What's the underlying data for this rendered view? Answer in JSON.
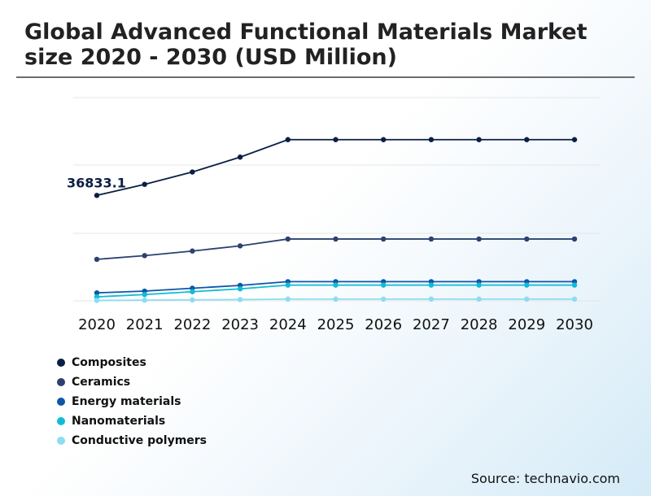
{
  "header": {
    "title": "Global Advanced Functional Materials Market size 2020 - 2030 (USD Million)"
  },
  "source": "Source: technavio.com",
  "chart_data": {
    "type": "line",
    "title": "Global Advanced Functional Materials Market size 2020 - 2030 (USD Million)",
    "x": [
      "2020",
      "2021",
      "2022",
      "2023",
      "2024",
      "2025",
      "2026",
      "2027",
      "2028",
      "2029",
      "2030"
    ],
    "ylim": [
      0,
      71000
    ],
    "grid": true,
    "legend_position": "bottom-left",
    "series": [
      {
        "name": "Composites",
        "color": "#0b1f45",
        "values": [
          36833.1,
          40700,
          45000,
          50200,
          56300,
          56300,
          56300,
          56300,
          56300,
          56300,
          56300
        ]
      },
      {
        "name": "Ceramics",
        "color": "#2b4170",
        "values": [
          14500,
          15800,
          17400,
          19200,
          21600,
          21600,
          21600,
          21600,
          21600,
          21600,
          21600
        ]
      },
      {
        "name": "Energy materials",
        "color": "#0d57a6",
        "values": [
          2800,
          3400,
          4400,
          5400,
          6700,
          6700,
          6700,
          6700,
          6700,
          6700,
          6700
        ]
      },
      {
        "name": "Nanomaterials",
        "color": "#0fbcd6",
        "values": [
          1400,
          2200,
          3200,
          4200,
          5500,
          5500,
          5500,
          5500,
          5500,
          5500,
          5500
        ]
      },
      {
        "name": "Conductive polymers",
        "color": "#8ddcf2",
        "values": [
          150,
          250,
          350,
          450,
          600,
          600,
          600,
          600,
          600,
          600,
          600
        ]
      }
    ],
    "annotations": [
      {
        "series": "Composites",
        "x": "2020",
        "text": "36833.1"
      }
    ]
  }
}
